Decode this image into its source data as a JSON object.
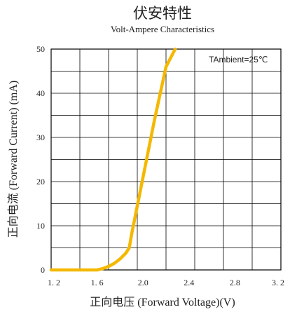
{
  "chart_data": {
    "type": "line",
    "title": "伏安特性",
    "subtitle": "Volt-Ampere Characteristics",
    "xlabel": "正向电压 (Forward Voltage)(V)",
    "ylabel": "正向电流 (Forward Current) (mA)",
    "annotation": "TAmbient=25℃",
    "xlim": [
      1.2,
      3.2
    ],
    "ylim": [
      0,
      50
    ],
    "x_ticks": [
      1.2,
      1.6,
      2.0,
      2.4,
      2.8,
      3.2
    ],
    "x_tick_labels": [
      "1. 2",
      "1. 6",
      "2.0",
      "2.4",
      "2.8",
      "3. 2"
    ],
    "y_ticks": [
      0,
      10,
      20,
      30,
      40,
      50
    ],
    "y_tick_labels": [
      "0",
      "10",
      "20",
      "30",
      "40",
      "50"
    ],
    "grid": true,
    "series": [
      {
        "color": "#f5b800",
        "x": [
          1.2,
          1.6,
          1.65,
          1.7,
          1.75,
          1.8,
          1.85,
          1.88,
          1.9,
          2.0,
          2.1,
          2.2,
          2.28
        ],
        "y": [
          0,
          0,
          0.3,
          0.8,
          1.5,
          2.5,
          3.8,
          5,
          8,
          21,
          34,
          46,
          50
        ]
      }
    ]
  }
}
